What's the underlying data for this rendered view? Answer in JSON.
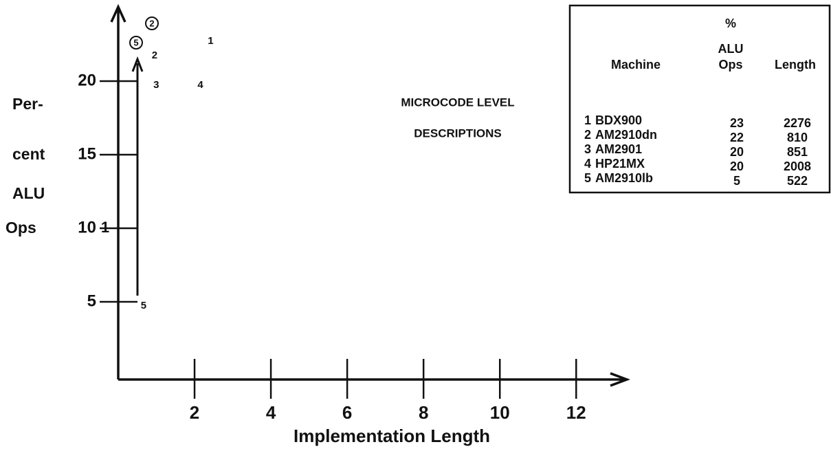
{
  "chart_data": {
    "type": "scatter",
    "title": [
      "MICROCODE LEVEL",
      "DESCRIPTIONS"
    ],
    "x_label": "Implementation Length",
    "y_label": [
      "Per-",
      "cent",
      "ALU",
      "Ops"
    ],
    "annotation": "1",
    "point_labels": [
      "1",
      "2",
      "3",
      "4",
      "5"
    ],
    "x": [
      2.276,
      0.81,
      0.851,
      2.008,
      0.522
    ],
    "values": [
      23,
      22,
      20,
      20,
      5
    ],
    "xlim": [
      0,
      13.4
    ],
    "ylim": [
      0,
      25
    ],
    "xticks": [
      2,
      4,
      6,
      8,
      10,
      12
    ],
    "yticks": [
      5,
      10,
      15,
      20
    ]
  },
  "table": {
    "headers": [
      "Machine",
      "%",
      "ALU",
      "Ops",
      "Length"
    ],
    "rows": [
      [
        "1",
        "BDX900",
        "23",
        "2276"
      ],
      [
        "2",
        "AM2910dn",
        "22",
        "810"
      ],
      [
        "3",
        "AM2901",
        "20",
        "851"
      ],
      [
        "4",
        "HP21MX",
        "20",
        "2008"
      ],
      [
        "5",
        "AM2910lb",
        "5",
        "522"
      ]
    ]
  }
}
